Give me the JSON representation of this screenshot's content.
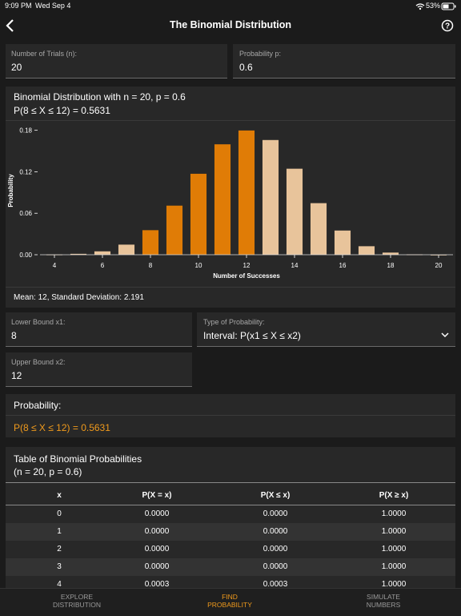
{
  "status_bar": {
    "time": "9:09 PM",
    "date": "Wed Sep 4",
    "battery": "53%"
  },
  "header": {
    "title": "The Binomial Distribution"
  },
  "inputs": {
    "trials_label": "Number of Trials (n):",
    "trials_value": "20",
    "prob_label": "Probability p:",
    "prob_value": "0.6"
  },
  "chart_data": {
    "type": "bar",
    "title": "Binomial Distribution with n = 20, p = 0.6",
    "subtitle": "P(8 ≤ X ≤ 12) = 0.5631",
    "x_label": "Number of Successes",
    "y_label": "Probability",
    "x": [
      4,
      5,
      6,
      7,
      8,
      9,
      10,
      11,
      12,
      13,
      14,
      15,
      16,
      17,
      18,
      19,
      20
    ],
    "values": [
      0.0003,
      0.0013,
      0.0049,
      0.0146,
      0.0355,
      0.071,
      0.1171,
      0.1597,
      0.1797,
      0.1659,
      0.1244,
      0.0746,
      0.035,
      0.0123,
      0.0031,
      0.0005,
      0.0
    ],
    "colors": [
      "#e8c49b",
      "#e8c49b",
      "#e8c49b",
      "#e8c49b",
      "#e07c06",
      "#e07c06",
      "#e07c06",
      "#e07c06",
      "#e07c06",
      "#e8c49b",
      "#e8c49b",
      "#e8c49b",
      "#e8c49b",
      "#e8c49b",
      "#e8c49b",
      "#e8c49b",
      "#e8c49b"
    ],
    "xlim": [
      3.4,
      20.6
    ],
    "xticks": [
      4,
      6,
      8,
      10,
      12,
      14,
      16,
      18,
      20
    ],
    "ylim": [
      0,
      0.19
    ],
    "yticks": [
      {
        "value": 0,
        "label": "0.00"
      },
      {
        "value": 0.06,
        "label": "0.06"
      },
      {
        "value": 0.12,
        "label": "0.12"
      },
      {
        "value": 0.18,
        "label": "0.18"
      }
    ]
  },
  "summary": "Mean: 12, Standard Deviation: 2.191",
  "bounds": {
    "lower_label": "Lower Bound x1:",
    "lower_value": "8",
    "type_label": "Type of Probability:",
    "type_value": "Interval: P(x1 ≤ X ≤ x2)",
    "upper_label": "Upper Bound x2:",
    "upper_value": "12"
  },
  "result": {
    "label": "Probability:",
    "value": "P(8 ≤ X ≤ 12) = 0.5631"
  },
  "table": {
    "title": "Table of Binomial Probabilities",
    "subtitle": "(n = 20, p = 0.6)",
    "headers": [
      "x",
      "P(X = x)",
      "P(X ≤ x)",
      "P(X ≥ x)"
    ],
    "rows": [
      [
        "0",
        "0.0000",
        "0.0000",
        "1.0000"
      ],
      [
        "1",
        "0.0000",
        "0.0000",
        "1.0000"
      ],
      [
        "2",
        "0.0000",
        "0.0000",
        "1.0000"
      ],
      [
        "3",
        "0.0000",
        "0.0000",
        "1.0000"
      ],
      [
        "4",
        "0.0003",
        "0.0003",
        "1.0000"
      ]
    ]
  },
  "tabs": {
    "explore": "EXPLORE DISTRIBUTION",
    "find": "FIND PROBABILITY",
    "simulate": "SIMULATE NUMBERS"
  }
}
